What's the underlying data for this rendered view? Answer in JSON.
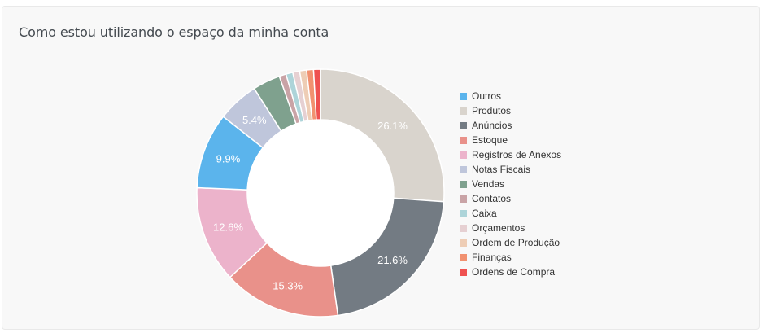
{
  "card": {
    "title": "Como estou utilizando o espaço da minha conta"
  },
  "chart_data": {
    "type": "pie",
    "donut": true,
    "legend_position": "right",
    "slices": [
      {
        "name": "Produtos",
        "value": 26.1,
        "label": "26.1%",
        "color": "#d9d4cd"
      },
      {
        "name": "Anúncios",
        "value": 21.6,
        "label": "21.6%",
        "color": "#737b83"
      },
      {
        "name": "Estoque",
        "value": 15.3,
        "label": "15.3%",
        "color": "#e9918a"
      },
      {
        "name": "Registros de Anexos",
        "value": 12.6,
        "label": "12.6%",
        "color": "#ecb3cb"
      },
      {
        "name": "Outros",
        "value": 9.9,
        "label": "9.9%",
        "color": "#5bb4ec"
      },
      {
        "name": "Notas Fiscais",
        "value": 5.4,
        "label": "5.4%",
        "color": "#bfc6db"
      },
      {
        "name": "Vendas",
        "value": 3.6,
        "label": "",
        "color": "#7fa18e"
      },
      {
        "name": "Contatos",
        "value": 0.9,
        "label": "",
        "color": "#c9a3a6"
      },
      {
        "name": "Caixa",
        "value": 0.9,
        "label": "",
        "color": "#add4d9"
      },
      {
        "name": "Orçamentos",
        "value": 0.9,
        "label": "",
        "color": "#e6d0d2"
      },
      {
        "name": "Ordem de Produção",
        "value": 0.9,
        "label": "",
        "color": "#eecdb5"
      },
      {
        "name": "Finanças",
        "value": 0.9,
        "label": "",
        "color": "#f19170"
      },
      {
        "name": "Ordens de Compra",
        "value": 0.9,
        "label": "",
        "color": "#ef5150"
      }
    ],
    "legend": [
      {
        "name": "Outros",
        "color": "#5bb4ec"
      },
      {
        "name": "Produtos",
        "color": "#d9d4cd"
      },
      {
        "name": "Anúncios",
        "color": "#737b83"
      },
      {
        "name": "Estoque",
        "color": "#e9918a"
      },
      {
        "name": "Registros de Anexos",
        "color": "#ecb3cb"
      },
      {
        "name": "Notas Fiscais",
        "color": "#bfc6db"
      },
      {
        "name": "Vendas",
        "color": "#7fa18e"
      },
      {
        "name": "Contatos",
        "color": "#c9a3a6"
      },
      {
        "name": "Caixa",
        "color": "#add4d9"
      },
      {
        "name": "Orçamentos",
        "color": "#e6d0d2"
      },
      {
        "name": "Ordem de Produção",
        "color": "#eecdb5"
      },
      {
        "name": "Finanças",
        "color": "#f19170"
      },
      {
        "name": "Ordens de Compra",
        "color": "#ef5150"
      }
    ]
  }
}
